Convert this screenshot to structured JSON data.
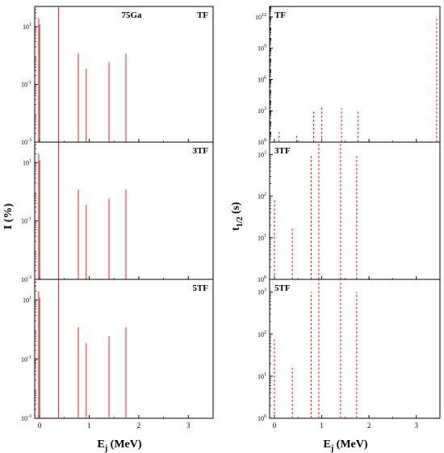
{
  "colors": {
    "data": "#e8221e",
    "frame": "#000000"
  },
  "left_column": {
    "ylabel": "I (%)",
    "xlabel": "E_j (MeV)",
    "xlabel_main": "E",
    "xlabel_sub": "j",
    "xlabel_unit": "(MeV)"
  },
  "right_column": {
    "ylabel_main": "t",
    "ylabel_sub": "1/2",
    "ylabel_unit": "(s)",
    "xlabel_main": "E",
    "xlabel_sub": "j",
    "xlabel_unit": "(MeV)"
  },
  "chart_data": [
    {
      "type": "bar",
      "label": "TF",
      "extra_label": "75Ga",
      "scale": "log",
      "ylim": [
        0.001,
        50
      ],
      "xlim": [
        -0.1,
        3.5
      ],
      "yticks": [
        {
          "v": 0.001,
          "b": "10",
          "e": "-3"
        },
        {
          "v": 0.1,
          "b": "10",
          "e": "-1"
        },
        {
          "v": 10,
          "b": "10",
          "e": "1"
        }
      ],
      "xticks": [
        "0",
        "1",
        "2",
        "3"
      ],
      "x": [
        -0.02,
        0.0,
        0.38,
        0.78,
        0.94,
        1.4,
        1.74
      ],
      "values": [
        20,
        12,
        50,
        1.2,
        0.35,
        0.6,
        1.2
      ],
      "line_style": "solid"
    },
    {
      "type": "bar",
      "label": "3TF",
      "scale": "log",
      "ylim": [
        0.001,
        50
      ],
      "xlim": [
        -0.1,
        3.5
      ],
      "yticks": [
        {
          "v": 0.001,
          "b": "10",
          "e": "-3"
        },
        {
          "v": 0.1,
          "b": "10",
          "e": "-1"
        },
        {
          "v": 10,
          "b": "10",
          "e": "1"
        }
      ],
      "xticks": [
        "0",
        "1",
        "2",
        "3"
      ],
      "x": [
        -0.02,
        0.0,
        0.38,
        0.78,
        0.94,
        1.4,
        1.74
      ],
      "values": [
        20,
        12,
        50,
        1.2,
        0.35,
        0.6,
        1.2
      ],
      "line_style": "solid"
    },
    {
      "type": "bar",
      "label": "5TF",
      "scale": "log",
      "ylim": [
        0.001,
        50
      ],
      "xlim": [
        -0.1,
        3.5
      ],
      "yticks": [
        {
          "v": 0.001,
          "b": "10",
          "e": "-3"
        },
        {
          "v": 0.1,
          "b": "10",
          "e": "-1"
        },
        {
          "v": 10,
          "b": "10",
          "e": "1"
        }
      ],
      "xticks": [
        "0",
        "1",
        "2",
        "3"
      ],
      "x": [
        -0.02,
        0.0,
        0.38,
        0.78,
        0.94,
        1.4,
        1.74
      ],
      "values": [
        20,
        12,
        50,
        1.2,
        0.35,
        0.6,
        1.2
      ],
      "line_style": "solid"
    },
    {
      "type": "bar",
      "label": "TF",
      "scale": "log",
      "ylim": [
        1,
        10000000000000.0
      ],
      "xlim": [
        -0.1,
        3.5
      ],
      "yticks": [
        {
          "v": 1,
          "b": "10",
          "e": "0"
        },
        {
          "v": 1000,
          "b": "10",
          "e": "3"
        },
        {
          "v": 1000000,
          "b": "10",
          "e": "6"
        },
        {
          "v": 1000000000,
          "b": "10",
          "e": "9"
        },
        {
          "v": 1000000000000,
          "b": "10",
          "e": "12"
        }
      ],
      "xticks": [
        "0",
        "1",
        "2",
        "3"
      ],
      "x": [
        0.1,
        0.47,
        0.83,
        1.0,
        1.42,
        1.77,
        3.43
      ],
      "values": [
        12,
        6,
        1000,
        3000,
        1800,
        1000,
        1000000000000.0
      ],
      "line_style": "dashed"
    },
    {
      "type": "bar",
      "label": "3TF",
      "scale": "log",
      "ylim": [
        1,
        2000
      ],
      "xlim": [
        -0.1,
        3.5
      ],
      "yticks": [
        {
          "v": 1,
          "b": "10",
          "e": "0"
        },
        {
          "v": 10,
          "b": "10",
          "e": "1"
        },
        {
          "v": 100,
          "b": "10",
          "e": "2"
        },
        {
          "v": 1000,
          "b": "10",
          "e": "3"
        }
      ],
      "xticks": [
        "0",
        "1",
        "2",
        "3"
      ],
      "x": [
        0.0,
        0.38,
        0.78,
        0.94,
        1.4,
        1.74
      ],
      "values": [
        80,
        18,
        1000,
        2000,
        1800,
        1000
      ],
      "line_style": "dashed"
    },
    {
      "type": "bar",
      "label": "5TF",
      "scale": "log",
      "ylim": [
        1,
        2000
      ],
      "xlim": [
        -0.1,
        3.5
      ],
      "yticks": [
        {
          "v": 1,
          "b": "10",
          "e": "0"
        },
        {
          "v": 10,
          "b": "10",
          "e": "1"
        },
        {
          "v": 100,
          "b": "10",
          "e": "2"
        },
        {
          "v": 1000,
          "b": "10",
          "e": "3"
        }
      ],
      "xticks": [
        "0",
        "1",
        "2",
        "3"
      ],
      "x": [
        0.0,
        0.38,
        0.78,
        0.94,
        1.4,
        1.74
      ],
      "values": [
        80,
        18,
        1000,
        2000,
        1800,
        1000
      ],
      "line_style": "dashed"
    }
  ]
}
